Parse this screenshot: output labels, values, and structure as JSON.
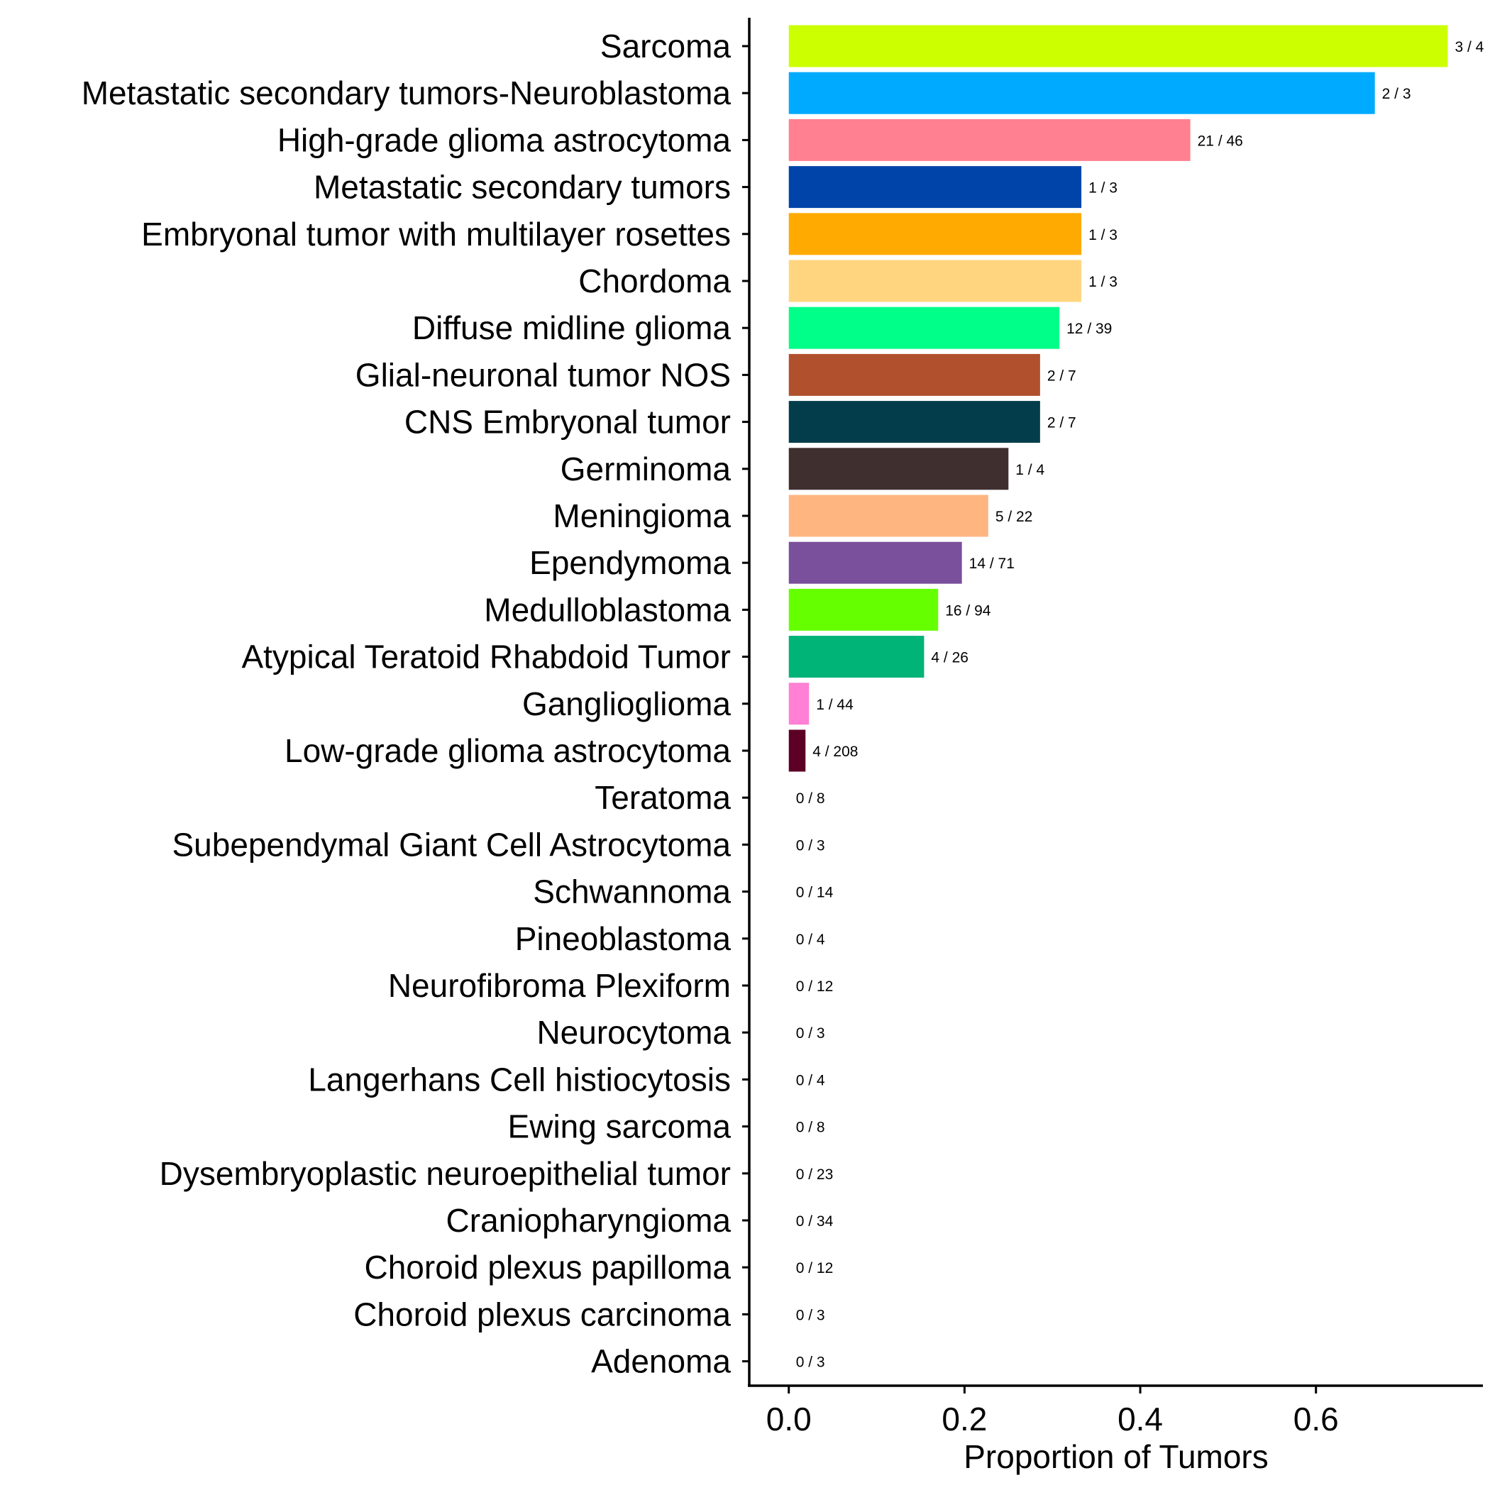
{
  "chart_data": {
    "type": "bar",
    "orientation": "horizontal",
    "title": "",
    "xlabel": "Proportion of Tumors",
    "ylabel": "",
    "xlim": [
      -0.045,
      0.79
    ],
    "xticks": [
      0.0,
      0.2,
      0.4,
      0.6
    ],
    "xtick_labels": [
      "0.0",
      "0.2",
      "0.4",
      "0.6"
    ],
    "grid": false,
    "legend": "none",
    "categories": [
      "Sarcoma",
      "Metastatic secondary tumors-Neuroblastoma",
      "High-grade glioma astrocytoma",
      "Metastatic secondary tumors",
      "Embryonal tumor with multilayer rosettes",
      "Chordoma",
      "Diffuse midline glioma",
      "Glial-neuronal tumor NOS",
      "CNS Embryonal tumor",
      "Germinoma",
      "Meningioma",
      "Ependymoma",
      "Medulloblastoma",
      "Atypical Teratoid Rhabdoid Tumor",
      "Ganglioglioma",
      "Low-grade glioma astrocytoma",
      "Teratoma",
      "Subependymal Giant Cell Astrocytoma",
      "Schwannoma",
      "Pineoblastoma",
      "Neurofibroma Plexiform",
      "Neurocytoma",
      "Langerhans Cell histiocytosis",
      "Ewing sarcoma",
      "Dysembryoplastic neuroepithelial tumor",
      "Craniopharyngioma",
      "Choroid plexus papilloma",
      "Choroid plexus carcinoma",
      "Adenoma"
    ],
    "values": [
      0.75,
      0.667,
      0.457,
      0.333,
      0.333,
      0.333,
      0.308,
      0.286,
      0.286,
      0.25,
      0.227,
      0.197,
      0.17,
      0.154,
      0.023,
      0.019,
      0,
      0,
      0,
      0,
      0,
      0,
      0,
      0,
      0,
      0,
      0,
      0,
      0
    ],
    "bar_labels": [
      "3 / 4",
      "2 / 3",
      "21 / 46",
      "1 / 3",
      "1 / 3",
      "1 / 3",
      "12 / 39",
      "2 / 7",
      "2 / 7",
      "1 / 4",
      "5 / 22",
      "14 / 71",
      "16 / 94",
      "4 / 26",
      "1 / 44",
      "4 / 208",
      "0 / 8",
      "0 / 3",
      "0 / 14",
      "0 / 4",
      "0 / 12",
      "0 / 3",
      "0 / 4",
      "0 / 8",
      "0 / 23",
      "0 / 34",
      "0 / 12",
      "0 / 3",
      "0 / 3"
    ],
    "colors": [
      "#CCFF00",
      "#00AAFF",
      "#FF8090",
      "#0044AA",
      "#FFAA00",
      "#FFD580",
      "#00FF88",
      "#B0502C",
      "#033D4C",
      "#3F2F2E",
      "#FFB580",
      "#7A4F9B",
      "#66FF00",
      "#00B377",
      "#FF80D5",
      "#5C0025",
      "#000000",
      "#000000",
      "#000000",
      "#000000",
      "#000000",
      "#000000",
      "#000000",
      "#000000",
      "#000000",
      "#000000",
      "#000000",
      "#000000",
      "#000000"
    ]
  }
}
